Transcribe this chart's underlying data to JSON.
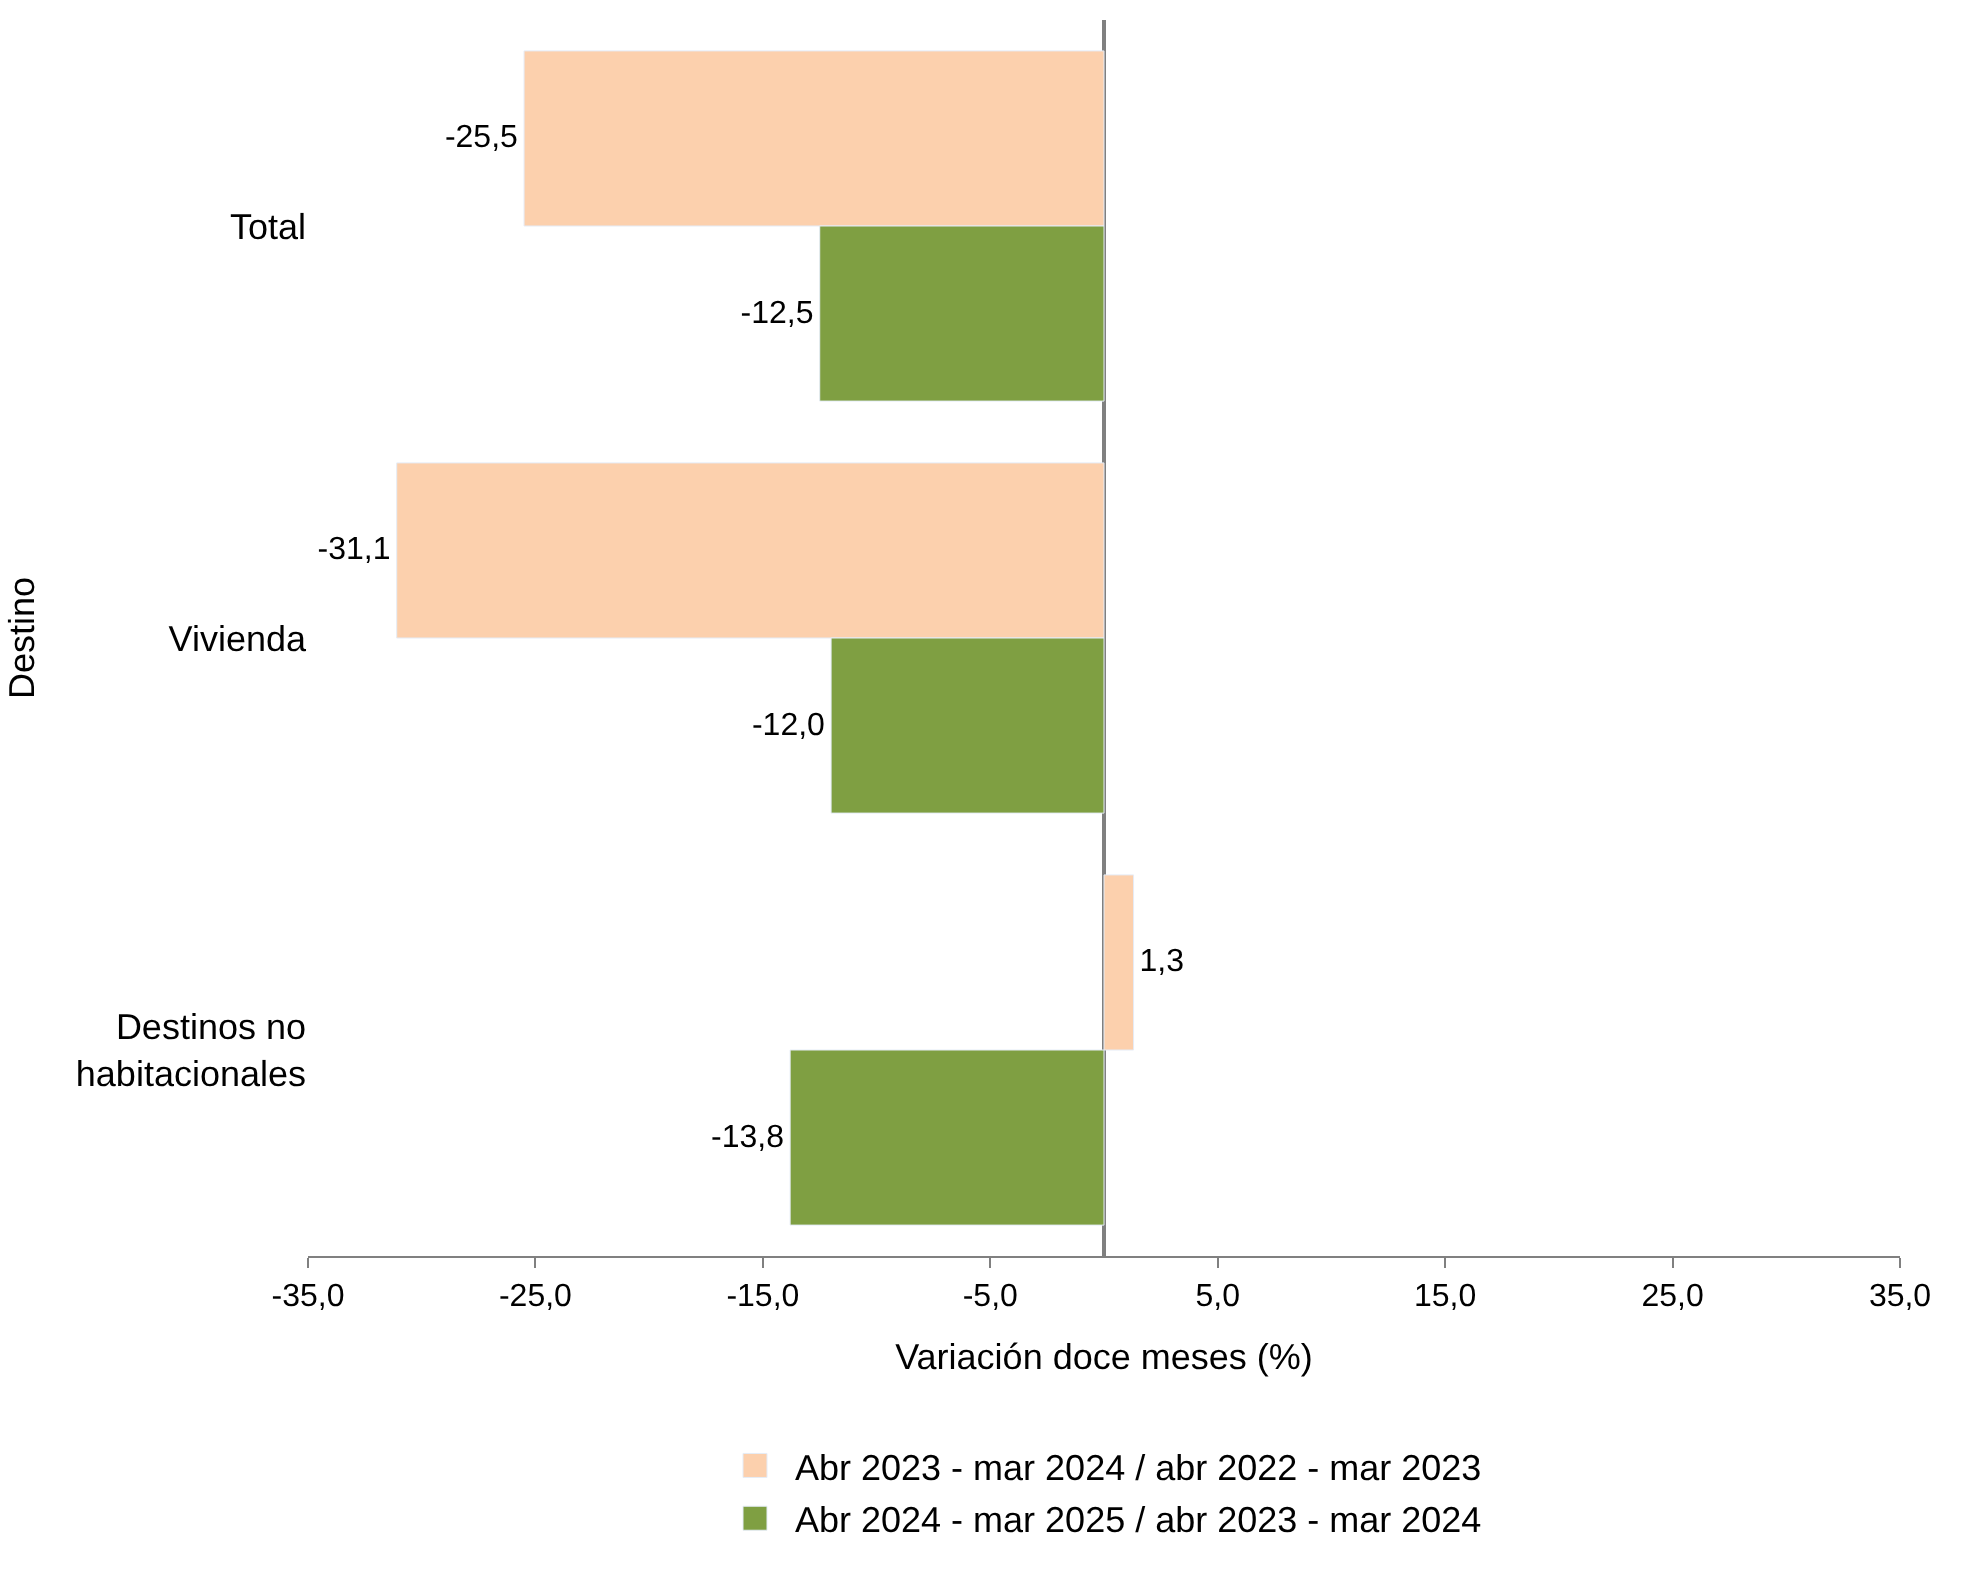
{
  "chart_data": {
    "type": "bar",
    "orientation": "horizontal",
    "categories": [
      "Total",
      "Vivienda",
      "Destinos no habitacionales"
    ],
    "series": [
      {
        "name": "Abr 2023 - mar 2024 / abr 2022 - mar 2023",
        "color": "#fcd0ad",
        "values": [
          -25.5,
          -31.1,
          1.3
        ],
        "value_labels": [
          "-25,5",
          "-31,1",
          "1,3"
        ]
      },
      {
        "name": "Abr 2024 - mar 2025 / abr 2023 - mar 2024",
        "color": "#7f9f42",
        "values": [
          -12.5,
          -12.0,
          -13.8
        ],
        "value_labels": [
          "-12,5",
          "-12,0",
          "-13,8"
        ]
      }
    ],
    "xlim": [
      -35,
      35
    ],
    "xticks": [
      {
        "value": -35,
        "label": "-35,0"
      },
      {
        "value": -25,
        "label": "-25,0"
      },
      {
        "value": -15,
        "label": "-15,0"
      },
      {
        "value": -5,
        "label": "-5,0"
      },
      {
        "value": 5,
        "label": "5,0"
      },
      {
        "value": 15,
        "label": "15,0"
      },
      {
        "value": 25,
        "label": "25,0"
      },
      {
        "value": 35,
        "label": "35,0"
      }
    ],
    "xlabel": "Variación doce meses (%)",
    "ylabel": "Destino",
    "legend": "bottom"
  }
}
